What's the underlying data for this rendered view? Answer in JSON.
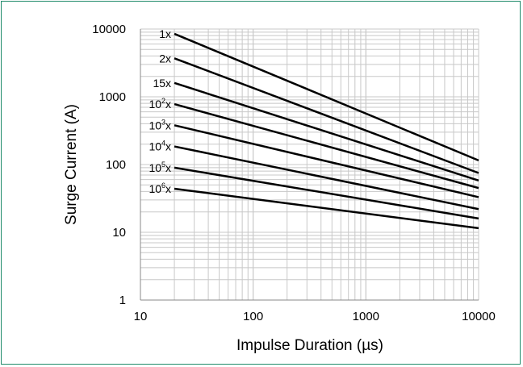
{
  "chart_data": {
    "type": "line",
    "xlabel": "Impulse Duration (µs)",
    "ylabel": "Surge Current (A)",
    "xscale": "log",
    "yscale": "log",
    "xlim": [
      10,
      10000
    ],
    "ylim": [
      1,
      10000
    ],
    "xticks": [
      "10",
      "100",
      "1000",
      "10000"
    ],
    "yticks": [
      "1",
      "10",
      "100",
      "1000",
      "10000"
    ],
    "grid": true,
    "line_color": "#000000",
    "grid_color": "#c8c8c8",
    "series": [
      {
        "name": "1x",
        "base": "1",
        "exp": "",
        "suffix": "x",
        "x": [
          20,
          10000
        ],
        "y": [
          8500,
          115
        ]
      },
      {
        "name": "2x",
        "base": "2",
        "exp": "",
        "suffix": "x",
        "x": [
          20,
          10000
        ],
        "y": [
          3700,
          75
        ]
      },
      {
        "name": "15x",
        "base": "15",
        "exp": "",
        "suffix": "x",
        "x": [
          20,
          10000
        ],
        "y": [
          1600,
          58
        ]
      },
      {
        "name": "10²x",
        "base": "10",
        "exp": "2",
        "suffix": "x",
        "x": [
          20,
          10000
        ],
        "y": [
          780,
          45
        ]
      },
      {
        "name": "10³x",
        "base": "10",
        "exp": "3",
        "suffix": "x",
        "x": [
          20,
          10000
        ],
        "y": [
          380,
          33
        ]
      },
      {
        "name": "10⁴x",
        "base": "10",
        "exp": "4",
        "suffix": "x",
        "x": [
          20,
          10000
        ],
        "y": [
          185,
          22
        ]
      },
      {
        "name": "10⁵x",
        "base": "10",
        "exp": "5",
        "suffix": "x",
        "x": [
          20,
          10000
        ],
        "y": [
          90,
          16
        ]
      },
      {
        "name": "10⁶x",
        "base": "10",
        "exp": "6",
        "suffix": "x",
        "x": [
          20,
          10000
        ],
        "y": [
          44,
          11.5
        ]
      }
    ]
  }
}
